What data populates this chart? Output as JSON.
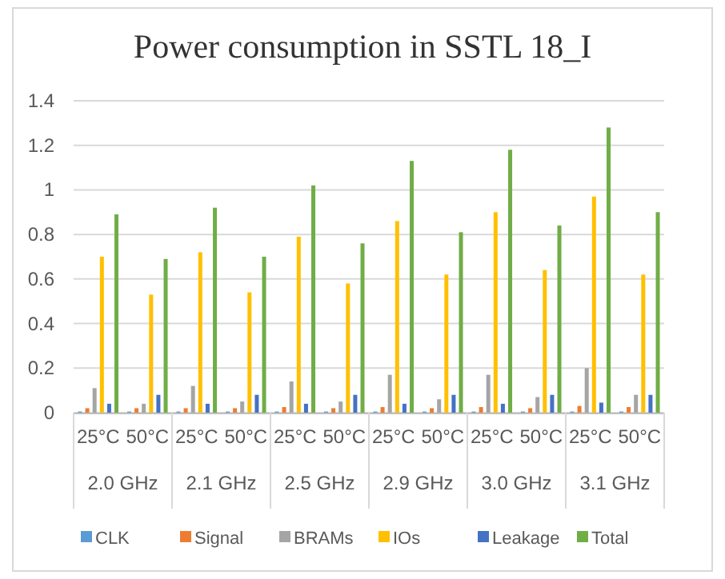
{
  "chart_data": {
    "type": "bar",
    "title": "Power consumption in SSTL 18_I",
    "categories": [
      "25°C",
      "50°C",
      "25°C",
      "50°C",
      "25°C",
      "50°C",
      "25°C",
      "50°C",
      "25°C",
      "50°C",
      "25°C",
      "50°C"
    ],
    "annotations": [
      "2.0 GHz",
      "2.1 GHz",
      "2.5 GHz",
      "2.9 GHz",
      "3.0 GHz",
      "3.1 GHz"
    ],
    "series": [
      {
        "name": "CLK",
        "color": "#5b9bd5",
        "values": [
          0.005,
          0.005,
          0.005,
          0.005,
          0.005,
          0.005,
          0.005,
          0.005,
          0.005,
          0.005,
          0.005,
          0.005
        ]
      },
      {
        "name": "Signal",
        "color": "#ed7d31",
        "values": [
          0.02,
          0.02,
          0.02,
          0.02,
          0.025,
          0.02,
          0.025,
          0.02,
          0.025,
          0.02,
          0.03,
          0.025
        ]
      },
      {
        "name": "BRAMs",
        "color": "#a5a5a5",
        "values": [
          0.11,
          0.04,
          0.12,
          0.05,
          0.14,
          0.05,
          0.17,
          0.06,
          0.17,
          0.07,
          0.2,
          0.08
        ]
      },
      {
        "name": "IOs",
        "color": "#ffc000",
        "values": [
          0.7,
          0.53,
          0.72,
          0.54,
          0.79,
          0.58,
          0.86,
          0.62,
          0.9,
          0.64,
          0.97,
          0.62
        ]
      },
      {
        "name": "Leakage",
        "color": "#4472c4",
        "values": [
          0.04,
          0.08,
          0.04,
          0.08,
          0.04,
          0.08,
          0.04,
          0.08,
          0.04,
          0.08,
          0.045,
          0.08
        ]
      },
      {
        "name": "Total",
        "color": "#70ad47",
        "values": [
          0.89,
          0.69,
          0.92,
          0.7,
          1.02,
          0.76,
          1.13,
          0.81,
          1.18,
          0.84,
          1.28,
          0.9
        ]
      }
    ],
    "ylim": [
      0,
      1.4
    ],
    "yticks": [
      0,
      0.2,
      0.4,
      0.6,
      0.8,
      1,
      1.2,
      1.4
    ],
    "grid": "y",
    "legend": "bottom"
  }
}
